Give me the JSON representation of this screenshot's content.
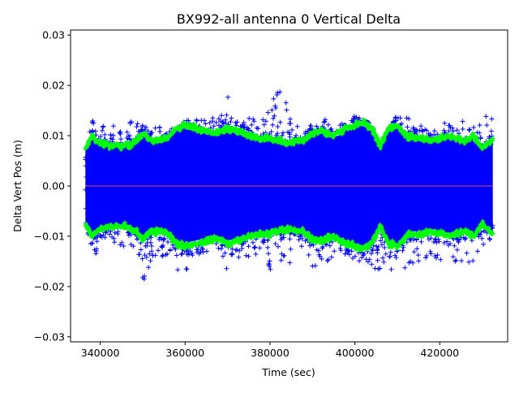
{
  "chart_data": {
    "type": "scatter",
    "title": "BX992-all antenna 0 Vertical Delta",
    "xlabel": "Time (sec)",
    "ylabel": "Delta Vert Pos (m)",
    "xlim": [
      333000,
      436000
    ],
    "ylim": [
      -0.031,
      0.031
    ],
    "x_ticks": [
      340000,
      360000,
      380000,
      400000,
      420000
    ],
    "x_tick_labels": [
      "340000",
      "360000",
      "380000",
      "400000",
      "420000"
    ],
    "y_ticks": [
      -0.03,
      -0.02,
      -0.01,
      0.0,
      0.01,
      0.02,
      0.03
    ],
    "y_tick_labels": [
      "−0.03",
      "−0.02",
      "−0.01",
      "0.00",
      "0.01",
      "0.02",
      "0.03"
    ],
    "grid": false,
    "legend": "none",
    "x_range": [
      336500,
      432500
    ],
    "series": [
      {
        "role": "delta",
        "marker": "+",
        "color": "#0000ff",
        "envelope_x": [
          336500,
          338000,
          340000,
          345000,
          348000,
          350000,
          352000,
          355000,
          358000,
          360000,
          362000,
          365000,
          368000,
          370000,
          372000,
          375000,
          378000,
          380000,
          382000,
          385000,
          388000,
          390000,
          392000,
          395000,
          398000,
          400000,
          402000,
          405000,
          406000,
          408000,
          410000,
          412000,
          415000,
          418000,
          420000,
          422000,
          425000,
          428000,
          430000,
          432500
        ],
        "upper": [
          0.006,
          0.014,
          0.012,
          0.012,
          0.013,
          0.012,
          0.012,
          0.012,
          0.011,
          0.013,
          0.013,
          0.014,
          0.014,
          0.018,
          0.016,
          0.014,
          0.014,
          0.015,
          0.022,
          0.013,
          0.012,
          0.012,
          0.014,
          0.013,
          0.012,
          0.014,
          0.013,
          0.012,
          0.005,
          0.012,
          0.014,
          0.014,
          0.013,
          0.012,
          0.013,
          0.014,
          0.013,
          0.012,
          0.013,
          0.016
        ],
        "lower": [
          -0.007,
          -0.015,
          -0.012,
          -0.012,
          -0.013,
          -0.021,
          -0.016,
          -0.014,
          -0.017,
          -0.019,
          -0.014,
          -0.013,
          -0.013,
          -0.017,
          -0.015,
          -0.014,
          -0.014,
          -0.017,
          -0.016,
          -0.016,
          -0.017,
          -0.016,
          -0.016,
          -0.015,
          -0.014,
          -0.016,
          -0.015,
          -0.017,
          -0.019,
          -0.02,
          -0.019,
          -0.017,
          -0.015,
          -0.014,
          -0.015,
          -0.016,
          -0.015,
          -0.016,
          -0.015,
          -0.009
        ]
      },
      {
        "role": "sigma_envelope",
        "marker": "+",
        "color": "#00ff00",
        "x": [
          336500,
          338000,
          340000,
          343000,
          346000,
          348000,
          350000,
          352000,
          354000,
          356000,
          358000,
          360000,
          362000,
          365000,
          368000,
          370000,
          372000,
          375000,
          378000,
          380000,
          382000,
          384000,
          386000,
          388000,
          390000,
          392000,
          394000,
          396000,
          398000,
          400000,
          402000,
          404000,
          406000,
          408000,
          410000,
          412000,
          414000,
          416000,
          418000,
          420000,
          422000,
          424000,
          426000,
          428000,
          430000,
          432500
        ],
        "values": [
          0.0075,
          0.01,
          0.0085,
          0.008,
          0.008,
          0.0085,
          0.0105,
          0.009,
          0.009,
          0.0095,
          0.0115,
          0.012,
          0.0115,
          0.011,
          0.0105,
          0.0115,
          0.011,
          0.01,
          0.0095,
          0.0095,
          0.009,
          0.0085,
          0.009,
          0.009,
          0.0105,
          0.011,
          0.01,
          0.0105,
          0.0115,
          0.012,
          0.0125,
          0.0115,
          0.008,
          0.0115,
          0.012,
          0.01,
          0.0095,
          0.0095,
          0.009,
          0.0095,
          0.01,
          0.0095,
          0.009,
          0.01,
          0.0075,
          0.0095
        ]
      },
      {
        "role": "zero_line",
        "marker": "line",
        "color": "#e05050",
        "y": 0.0
      }
    ]
  }
}
